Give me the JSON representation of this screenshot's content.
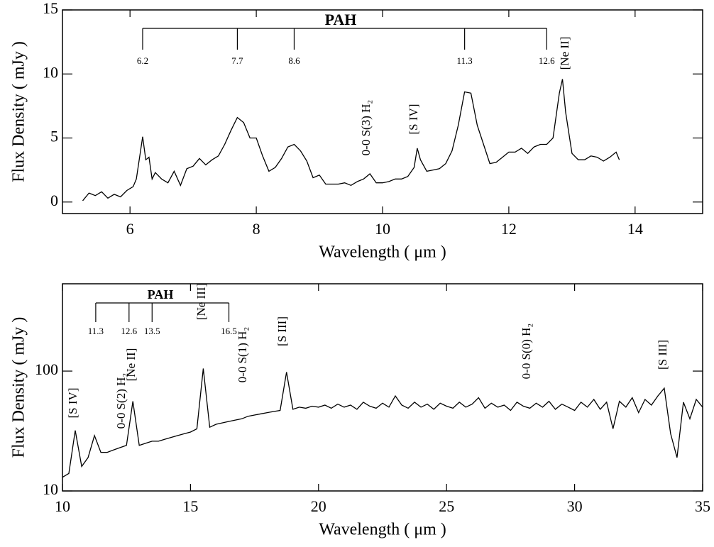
{
  "chart_data": [
    {
      "type": "line",
      "xlabel": "Wavelength ( μm )",
      "ylabel": "Flux Density ( mJy )",
      "color": "#000000",
      "xlim": [
        4.93,
        15.07
      ],
      "ylim": [
        -0.9,
        15
      ],
      "xticks": [
        6,
        8,
        10,
        12,
        14
      ],
      "yticks": [
        0,
        5,
        10,
        15
      ],
      "ylog": false,
      "x": [
        5.25,
        5.35,
        5.45,
        5.55,
        5.65,
        5.75,
        5.85,
        5.95,
        6.05,
        6.1,
        6.2,
        6.25,
        6.3,
        6.35,
        6.4,
        6.5,
        6.6,
        6.7,
        6.8,
        6.9,
        7.0,
        7.1,
        7.2,
        7.3,
        7.4,
        7.5,
        7.6,
        7.7,
        7.8,
        7.9,
        8.0,
        8.1,
        8.2,
        8.3,
        8.4,
        8.5,
        8.6,
        8.7,
        8.8,
        8.9,
        9.0,
        9.1,
        9.2,
        9.3,
        9.4,
        9.5,
        9.6,
        9.7,
        9.8,
        9.9,
        10.0,
        10.1,
        10.2,
        10.3,
        10.4,
        10.5,
        10.55,
        10.6,
        10.7,
        10.8,
        10.9,
        11.0,
        11.1,
        11.2,
        11.3,
        11.4,
        11.5,
        11.6,
        11.7,
        11.8,
        11.9,
        12.0,
        12.1,
        12.2,
        12.3,
        12.4,
        12.5,
        12.6,
        12.7,
        12.8,
        12.85,
        12.9,
        13.0,
        13.1,
        13.2,
        13.3,
        13.4,
        13.5,
        13.6,
        13.7,
        13.75
      ],
      "values": [
        0.1,
        0.7,
        0.5,
        0.8,
        0.3,
        0.6,
        0.4,
        0.9,
        1.2,
        1.8,
        5.1,
        3.3,
        3.5,
        1.8,
        2.3,
        1.8,
        1.5,
        2.4,
        1.3,
        2.6,
        2.8,
        3.4,
        2.9,
        3.3,
        3.6,
        4.5,
        5.6,
        6.6,
        6.2,
        5.0,
        5.0,
        3.6,
        2.4,
        2.7,
        3.4,
        4.3,
        4.5,
        4.0,
        3.2,
        1.9,
        2.1,
        1.4,
        1.4,
        1.4,
        1.5,
        1.3,
        1.6,
        1.8,
        2.2,
        1.5,
        1.5,
        1.6,
        1.8,
        1.8,
        2.0,
        2.7,
        4.2,
        3.3,
        2.4,
        2.5,
        2.6,
        3.0,
        4.0,
        6.0,
        8.6,
        8.5,
        6.0,
        4.5,
        3.0,
        3.1,
        3.5,
        3.9,
        3.9,
        4.2,
        3.8,
        4.3,
        4.5,
        4.5,
        5.0,
        8.5,
        9.6,
        7.0,
        3.8,
        3.3,
        3.3,
        3.6,
        3.5,
        3.2,
        3.5,
        3.9,
        3.3
      ],
      "pah_label": "PAH",
      "pah_features": [
        6.2,
        7.7,
        8.6,
        11.3,
        12.6
      ],
      "line_labels": [
        "0-0 S(3) H₂",
        "[S IV]",
        "[Ne II]"
      ]
    },
    {
      "type": "line",
      "xlabel": "Wavelength ( μm )",
      "ylabel": "Flux Density ( mJy )",
      "color": "#000000",
      "xlim": [
        10,
        35
      ],
      "ylim": [
        10,
        535
      ],
      "xticks": [
        10,
        15,
        20,
        25,
        30,
        35
      ],
      "yticks": [
        10,
        100
      ],
      "ylog": true,
      "x": [
        10,
        10.25,
        10.5,
        10.75,
        11,
        11.25,
        11.5,
        11.75,
        12,
        12.25,
        12.5,
        12.75,
        13,
        13.25,
        13.5,
        13.75,
        14,
        14.25,
        14.5,
        14.75,
        15,
        15.25,
        15.5,
        15.75,
        16,
        16.25,
        16.5,
        16.75,
        17,
        17.25,
        17.5,
        17.75,
        18,
        18.25,
        18.5,
        18.75,
        19,
        19.25,
        19.5,
        19.75,
        20,
        20.25,
        20.5,
        20.75,
        21,
        21.25,
        21.5,
        21.75,
        22,
        22.25,
        22.5,
        22.75,
        23,
        23.25,
        23.5,
        23.75,
        24,
        24.25,
        24.5,
        24.75,
        25,
        25.25,
        25.5,
        25.75,
        26,
        26.25,
        26.5,
        26.75,
        27,
        27.25,
        27.5,
        27.75,
        28,
        28.25,
        28.5,
        28.75,
        29,
        29.25,
        29.5,
        29.75,
        30,
        30.25,
        30.5,
        30.75,
        31,
        31.25,
        31.5,
        31.75,
        32,
        32.25,
        32.5,
        32.75,
        33,
        33.25,
        33.5,
        33.75,
        34,
        34.25,
        34.5,
        34.75,
        35
      ],
      "values": [
        13,
        14,
        32,
        16,
        19,
        29,
        21,
        21,
        22,
        23,
        24,
        56,
        24,
        25,
        26,
        26,
        27,
        28,
        29,
        30,
        31,
        33,
        105,
        34,
        36,
        37,
        38,
        39,
        40,
        42,
        43,
        44,
        45,
        46,
        47,
        98,
        48,
        50,
        49,
        51,
        50,
        52,
        49,
        53,
        50,
        52,
        48,
        55,
        51,
        49,
        54,
        50,
        62,
        52,
        49,
        55,
        50,
        53,
        48,
        54,
        51,
        49,
        55,
        50,
        53,
        60,
        49,
        54,
        50,
        52,
        47,
        55,
        51,
        49,
        54,
        50,
        56,
        48,
        53,
        50,
        47,
        55,
        50,
        58,
        48,
        55,
        33,
        56,
        50,
        60,
        45,
        58,
        52,
        62,
        72,
        30,
        19,
        55,
        40,
        58,
        50
      ],
      "pah_label": "PAH",
      "pah_features": [
        11.3,
        12.6,
        13.5,
        16.5
      ],
      "line_labels": [
        "[S IV]",
        "0-0 S(2) H₂",
        "[Ne II]",
        "[Ne III]",
        "0-0 S(1)  H₂",
        "[S III]",
        "0-0 S(0)  H₂",
        "[S III]"
      ]
    }
  ]
}
